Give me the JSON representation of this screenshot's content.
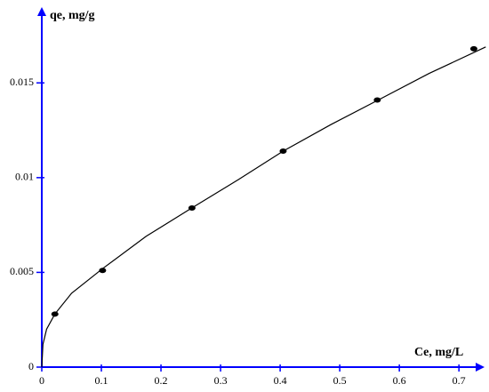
{
  "chart_data": {
    "type": "scatter",
    "xlabel": "Ce, mg/L",
    "ylabel": "qe, mg/g",
    "series": [
      {
        "type": "line",
        "color": "#000000",
        "x": [
          0,
          0.002,
          0.008,
          0.022,
          0.05,
          0.102,
          0.175,
          0.252,
          0.33,
          0.405,
          0.485,
          0.565,
          0.65,
          0.745
        ],
        "values": [
          0,
          0.0012,
          0.002,
          0.0028,
          0.0039,
          0.0052,
          0.0069,
          0.0084,
          0.0099,
          0.0114,
          0.0128,
          0.0141,
          0.0155,
          0.0169
        ]
      },
      {
        "type": "scatter",
        "color": "#000000",
        "x": [
          0.022,
          0.102,
          0.252,
          0.405,
          0.563,
          0.725
        ],
        "values": [
          0.0028,
          0.0051,
          0.0084,
          0.0114,
          0.0141,
          0.0168
        ]
      }
    ],
    "xlim": [
      0,
      0.743
    ],
    "ylim": [
      0,
      0.019
    ],
    "xticks": [
      0,
      0.1,
      0.2,
      0.3,
      0.4,
      0.5,
      0.6,
      0.7
    ],
    "yticks": [
      0,
      0.005,
      0.01,
      0.015
    ],
    "axis_color": "#0000ff"
  }
}
